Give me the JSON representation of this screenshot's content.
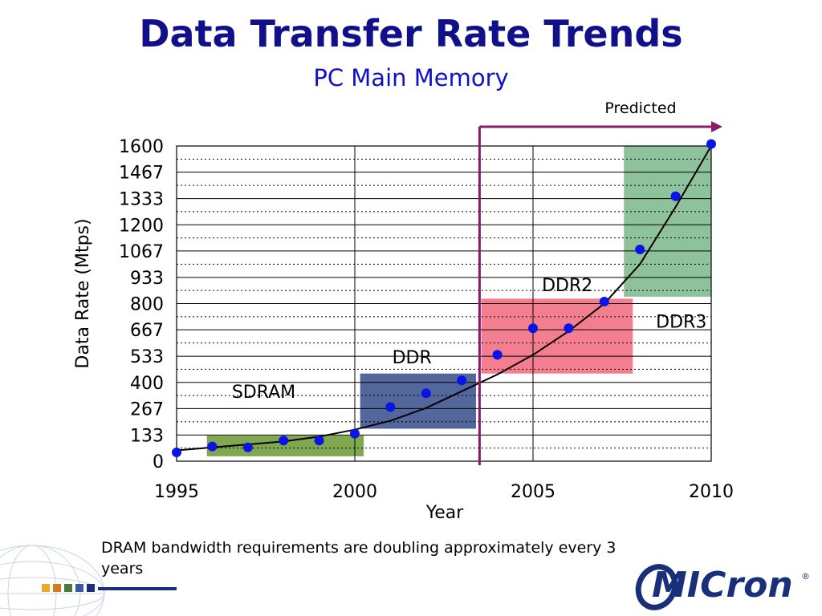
{
  "slide": {
    "title": "Data Transfer Rate Trends",
    "subtitle": "PC Main Memory",
    "caption": "DRAM bandwidth requirements are doubling approximately every 3 years",
    "logo_text": "Micron"
  },
  "colors": {
    "title": "#10108a",
    "subtitle": "#1010cc",
    "points": "#0a14e6",
    "sdram": "#80a84e",
    "ddr": "#53679b",
    "ddr2": "#f37e8f",
    "ddr3": "#8ec29a",
    "predicted_arrow": "#8a1a6a",
    "logo": "#1a2f7a"
  },
  "chart_data": {
    "type": "scatter",
    "xlabel": "Year",
    "ylabel": "Data Rate (Mtps)",
    "xlim": [
      1995,
      2010
    ],
    "ylim": [
      0,
      1600
    ],
    "x_ticks": [
      1995,
      2000,
      2005,
      2010
    ],
    "x_tick_labels": [
      "1995",
      "2000",
      "2005",
      "2010"
    ],
    "y_ticks": [
      0,
      133,
      267,
      400,
      533,
      667,
      800,
      933,
      1067,
      1200,
      1333,
      1467,
      1600
    ],
    "y_tick_labels": [
      "0",
      "133",
      "267",
      "400",
      "533",
      "667",
      "800",
      "933",
      "1067",
      "1200",
      "1333",
      "1467",
      "1600"
    ],
    "grid": true,
    "points": [
      {
        "x": 1995,
        "y": 45
      },
      {
        "x": 1996,
        "y": 75
      },
      {
        "x": 1997,
        "y": 70
      },
      {
        "x": 1998,
        "y": 105
      },
      {
        "x": 1999,
        "y": 105
      },
      {
        "x": 2000,
        "y": 140
      },
      {
        "x": 2001,
        "y": 275
      },
      {
        "x": 2002,
        "y": 345
      },
      {
        "x": 2003,
        "y": 410
      },
      {
        "x": 2004,
        "y": 540
      },
      {
        "x": 2005,
        "y": 675
      },
      {
        "x": 2006,
        "y": 675
      },
      {
        "x": 2007,
        "y": 810
      },
      {
        "x": 2008,
        "y": 1075
      },
      {
        "x": 2009,
        "y": 1345
      },
      {
        "x": 2010,
        "y": 1610
      }
    ],
    "trend_curve": [
      {
        "x": 1995,
        "y": 55
      },
      {
        "x": 1996,
        "y": 70
      },
      {
        "x": 1997,
        "y": 85
      },
      {
        "x": 1998,
        "y": 100
      },
      {
        "x": 1999,
        "y": 125
      },
      {
        "x": 2000,
        "y": 160
      },
      {
        "x": 2001,
        "y": 205
      },
      {
        "x": 2002,
        "y": 270
      },
      {
        "x": 2003,
        "y": 355
      },
      {
        "x": 2004,
        "y": 440
      },
      {
        "x": 2005,
        "y": 540
      },
      {
        "x": 2006,
        "y": 660
      },
      {
        "x": 2007,
        "y": 800
      },
      {
        "x": 2008,
        "y": 1000
      },
      {
        "x": 2009,
        "y": 1290
      },
      {
        "x": 2010,
        "y": 1600
      }
    ],
    "regions": [
      {
        "name": "SDRAM",
        "x0": 1995.85,
        "x1": 2000.25,
        "y0": 25,
        "y1": 130,
        "color": "#80a84e",
        "label": "SDRAM",
        "label_x": 1996.55,
        "label_y": 355
      },
      {
        "name": "DDR",
        "x0": 2000.15,
        "x1": 2003.4,
        "y0": 165,
        "y1": 445,
        "color": "#53679b",
        "label": "DDR",
        "label_x": 2001.05,
        "label_y": 530
      },
      {
        "name": "DDR2",
        "x0": 2003.55,
        "x1": 2007.8,
        "y0": 445,
        "y1": 825,
        "color": "#f37e8f",
        "label": "DDR2",
        "label_x": 2005.25,
        "label_y": 895
      },
      {
        "name": "DDR3",
        "x0": 2007.55,
        "x1": 2010.0,
        "y0": 835,
        "y1": 1600,
        "color": "#8ec29a",
        "label": "DDR3",
        "label_x": 2008.45,
        "label_y": 710
      }
    ],
    "annotation": {
      "text": "Predicted",
      "x": 2003.5
    }
  }
}
